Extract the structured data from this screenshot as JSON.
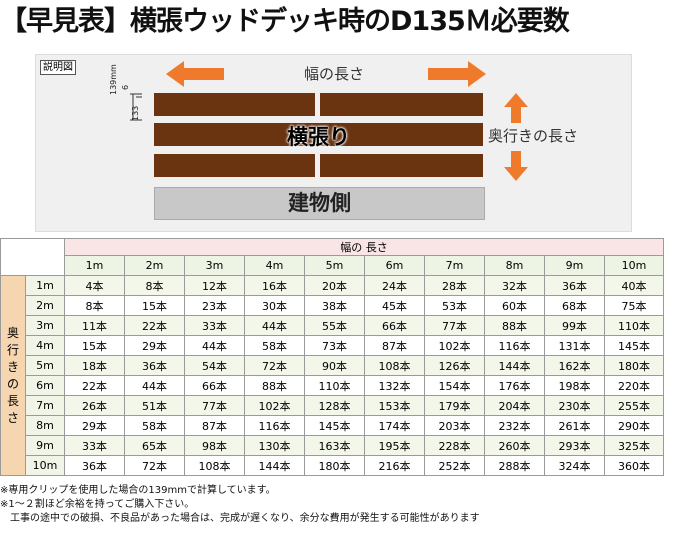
{
  "title": "【早見表】横張ウッドデッキ時のD135Ｍ必要数",
  "diagram": {
    "label": "説明図",
    "width_label": "幅の長さ",
    "depth_label": "奥行きの長さ",
    "boards_label": "横張り",
    "building_label": "建物側",
    "dim_139": "139mm",
    "dim_6": "6",
    "dim_133": "133"
  },
  "table": {
    "width_header": "幅の 長さ",
    "depth_header": "奥行きの長さ",
    "columns": [
      "1m",
      "2m",
      "3m",
      "4m",
      "5m",
      "6m",
      "7m",
      "8m",
      "9m",
      "10m"
    ],
    "rows": [
      {
        "label": "1m",
        "values": [
          "4本",
          "8本",
          "12本",
          "16本",
          "20本",
          "24本",
          "28本",
          "32本",
          "36本",
          "40本"
        ]
      },
      {
        "label": "2m",
        "values": [
          "8本",
          "15本",
          "23本",
          "30本",
          "38本",
          "45本",
          "53本",
          "60本",
          "68本",
          "75本"
        ]
      },
      {
        "label": "3m",
        "values": [
          "11本",
          "22本",
          "33本",
          "44本",
          "55本",
          "66本",
          "77本",
          "88本",
          "99本",
          "110本"
        ]
      },
      {
        "label": "4m",
        "values": [
          "15本",
          "29本",
          "44本",
          "58本",
          "73本",
          "87本",
          "102本",
          "116本",
          "131本",
          "145本"
        ]
      },
      {
        "label": "5m",
        "values": [
          "18本",
          "36本",
          "54本",
          "72本",
          "90本",
          "108本",
          "126本",
          "144本",
          "162本",
          "180本"
        ]
      },
      {
        "label": "6m",
        "values": [
          "22本",
          "44本",
          "66本",
          "88本",
          "110本",
          "132本",
          "154本",
          "176本",
          "198本",
          "220本"
        ]
      },
      {
        "label": "7m",
        "values": [
          "26本",
          "51本",
          "77本",
          "102本",
          "128本",
          "153本",
          "179本",
          "204本",
          "230本",
          "255本"
        ]
      },
      {
        "label": "8m",
        "values": [
          "29本",
          "58本",
          "87本",
          "116本",
          "145本",
          "174本",
          "203本",
          "232本",
          "261本",
          "290本"
        ]
      },
      {
        "label": "9m",
        "values": [
          "33本",
          "65本",
          "98本",
          "130本",
          "163本",
          "195本",
          "228本",
          "260本",
          "293本",
          "325本"
        ]
      },
      {
        "label": "10m",
        "values": [
          "36本",
          "72本",
          "108本",
          "144本",
          "180本",
          "216本",
          "252本",
          "288本",
          "324本",
          "360本"
        ]
      }
    ]
  },
  "notes": [
    "※専用クリップを使用した場合の139mmで計算しています。",
    "※1～２割ほど余裕を持ってご購入下さい。",
    "工事の途中での破損、不良品があった場合は、完成が遅くなり、余分な費用が発生する可能性があります"
  ],
  "colors": {
    "board": "#6b3410",
    "arrow": "#f07a2c",
    "width_header_bg": "#f9e4e6",
    "depth_header_bg": "#f6d6b0"
  }
}
